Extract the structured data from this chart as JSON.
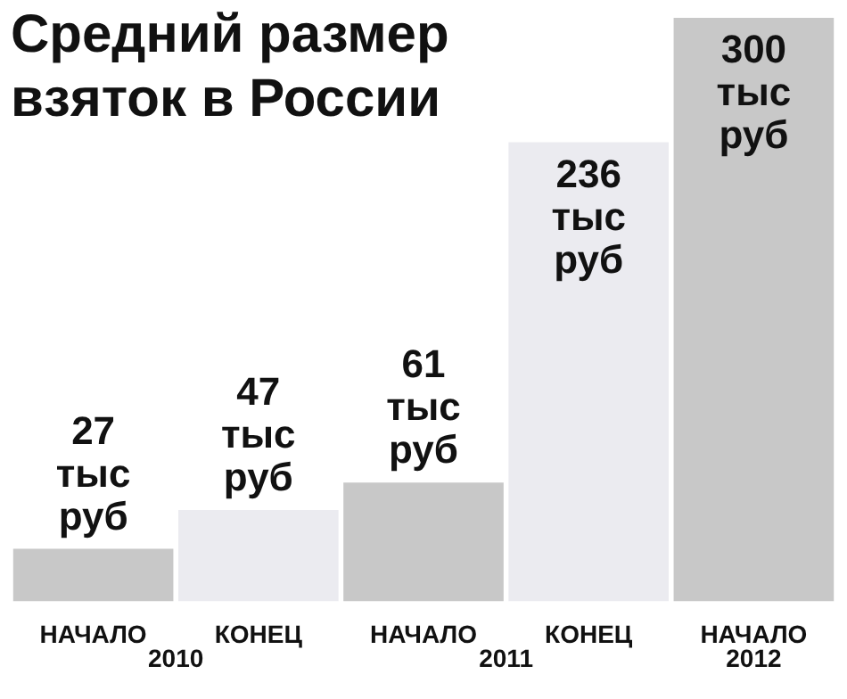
{
  "chart_data": {
    "type": "bar",
    "title": "Средний размер взяток в России",
    "categories": [
      "НАЧАЛО",
      "КОНЕЦ",
      "НАЧАЛО",
      "КОНЕЦ",
      "НАЧАЛО"
    ],
    "values": [
      27,
      47,
      61,
      236,
      300
    ],
    "colors": [
      "#c8c8c8",
      "#ebebf0",
      "#c8c8c8",
      "#ebebf0",
      "#c8c8c8"
    ],
    "value_labels": [
      "27 тыс руб",
      "47 тыс руб",
      "61 тыс руб",
      "236 тыс руб",
      "300 тыс руб"
    ],
    "annotations": [
      "2010",
      "2011",
      "2012"
    ],
    "grid": false,
    "legend": false
  }
}
